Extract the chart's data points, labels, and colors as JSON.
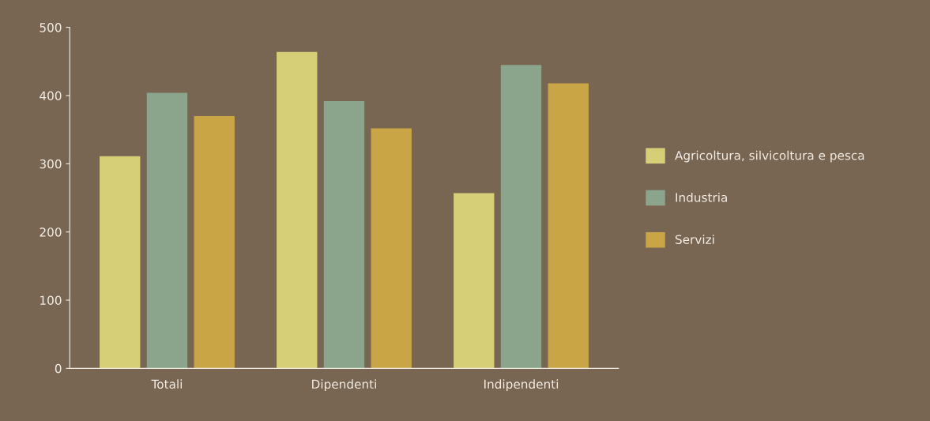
{
  "chart_data": {
    "type": "bar",
    "categories": [
      "Totali",
      "Dipendenti",
      "Indipendenti"
    ],
    "series": [
      {
        "name": "Agricoltura, silvicoltura e pesca",
        "color": "#d6cf78",
        "values": [
          311,
          464,
          257
        ]
      },
      {
        "name": "Industria",
        "color": "#8aa58c",
        "values": [
          404,
          392,
          445
        ]
      },
      {
        "name": "Servizi",
        "color": "#c9a545",
        "values": [
          370,
          352,
          418
        ]
      }
    ],
    "ylim": [
      0,
      500
    ],
    "yticks": [
      0,
      100,
      200,
      300,
      400,
      500
    ],
    "grid": false,
    "legend": "right"
  }
}
